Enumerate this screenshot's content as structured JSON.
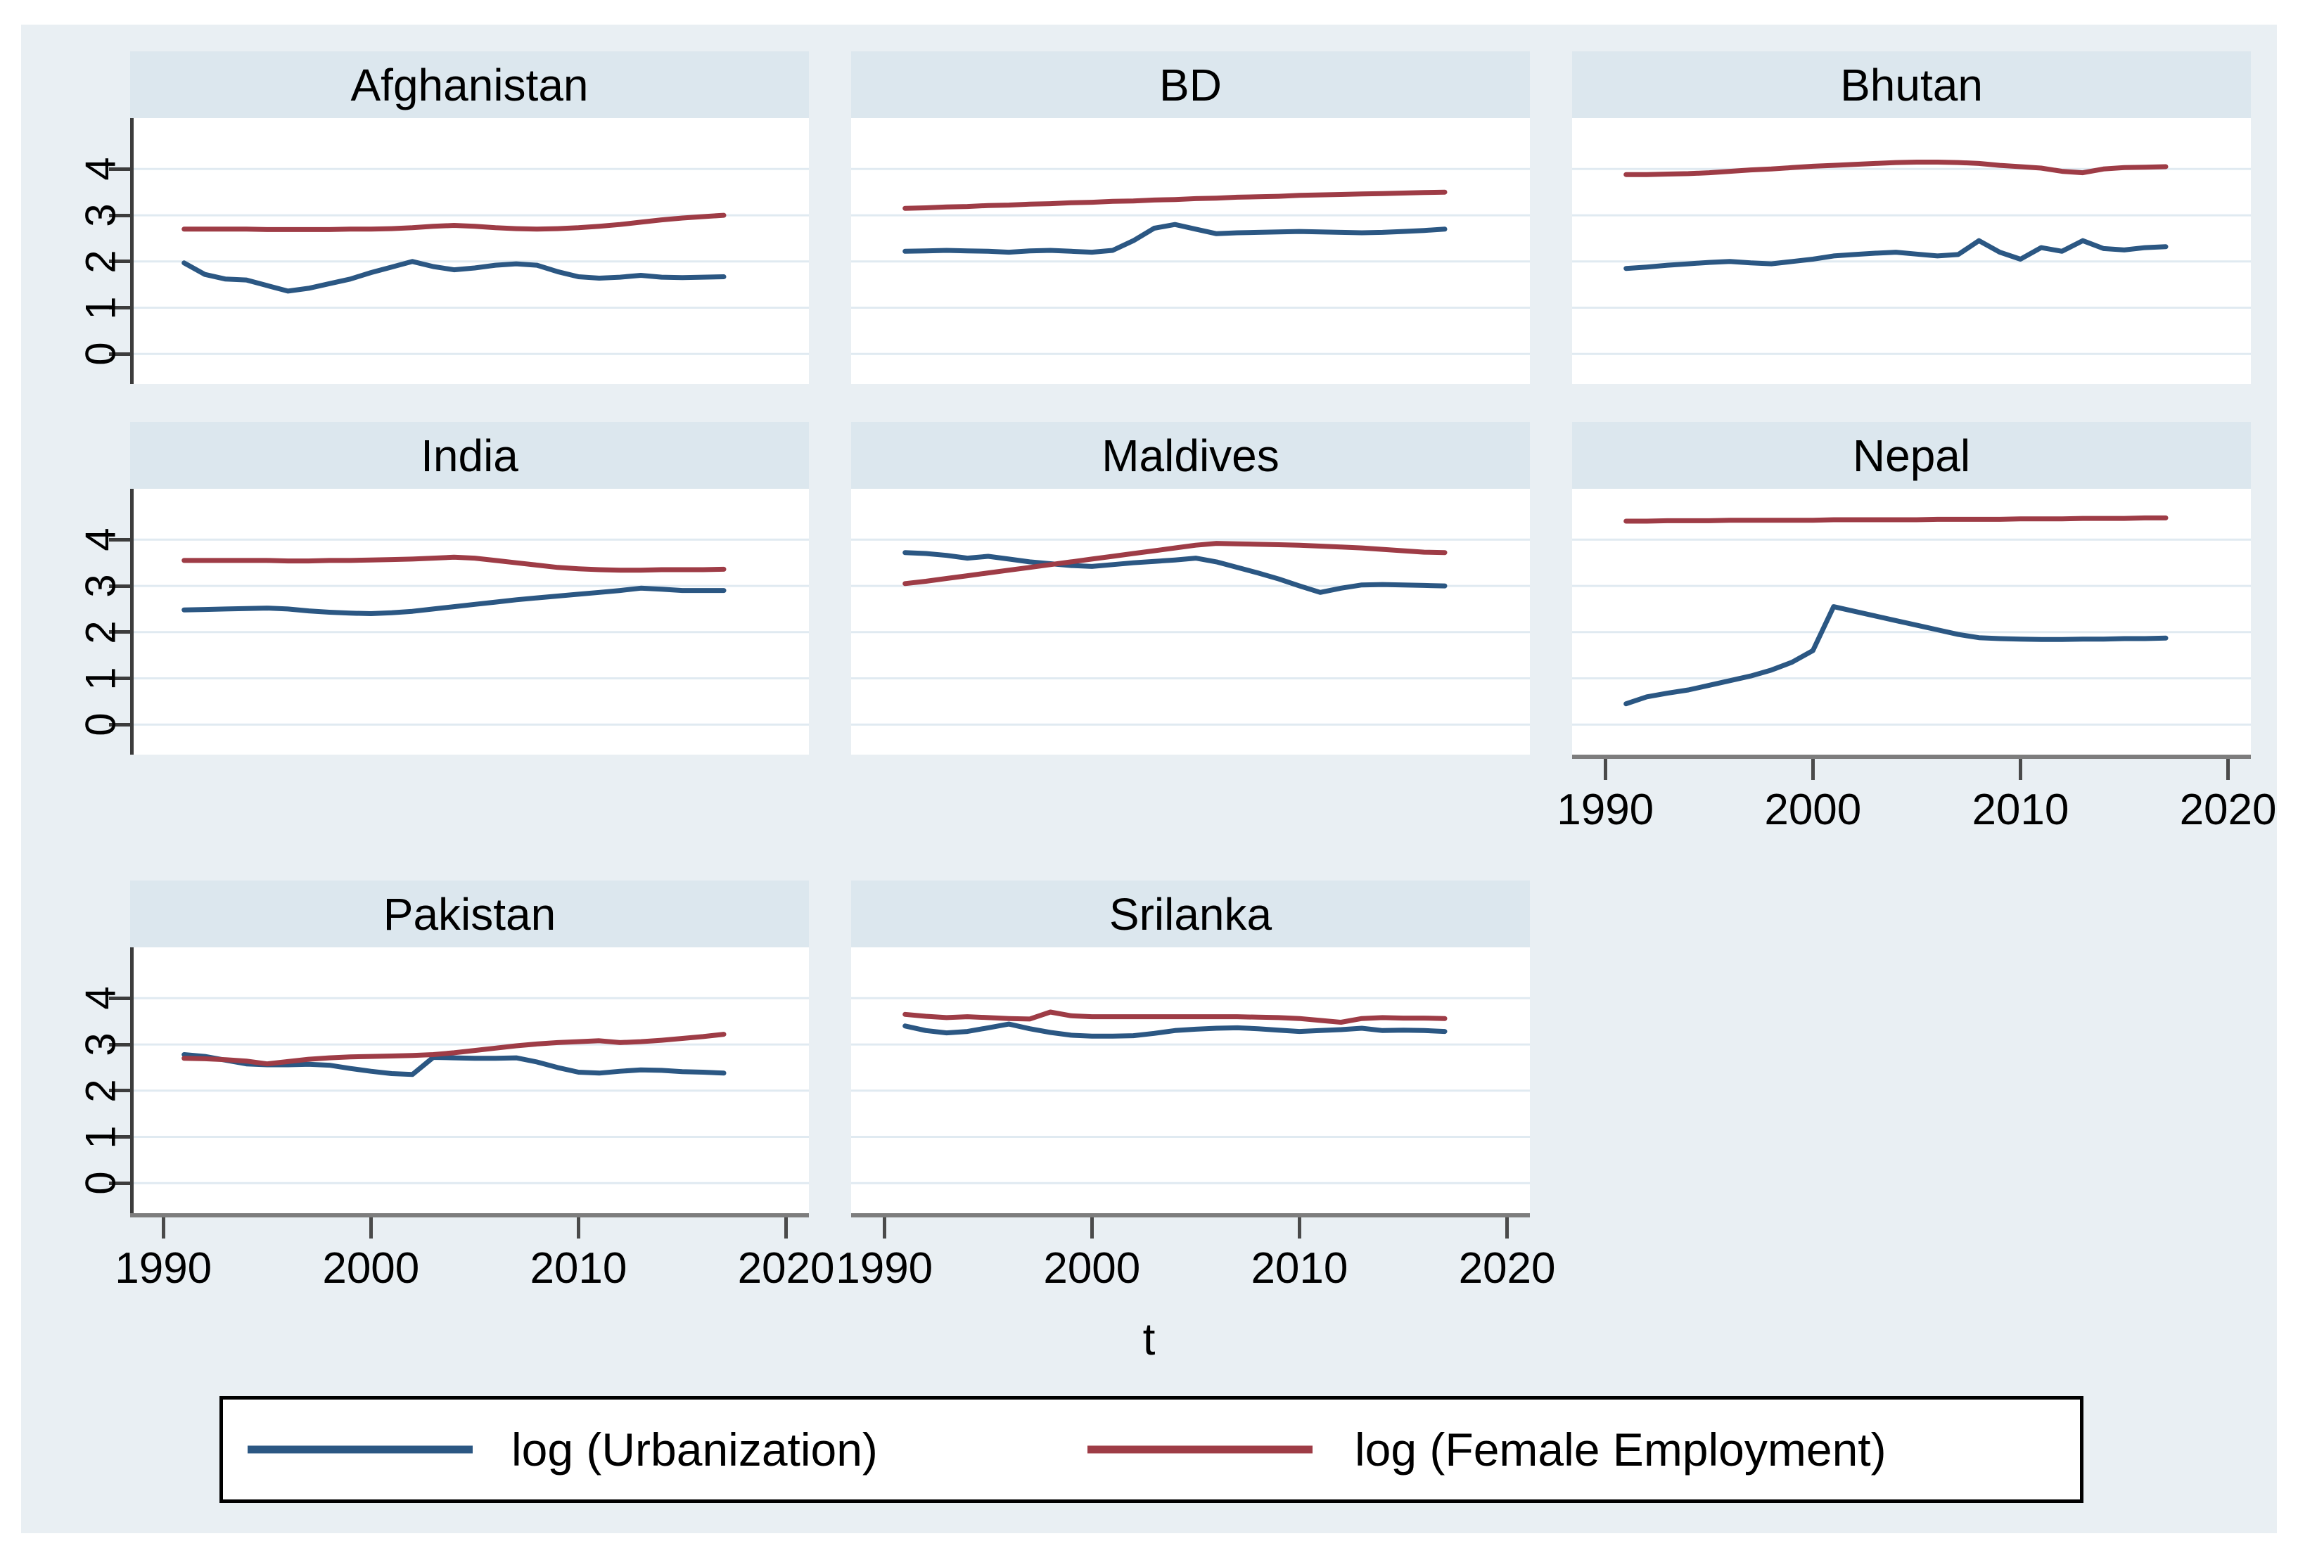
{
  "figure": {
    "background_color": "#e9eff3",
    "panel_band_color": "#dce7ee",
    "gridline_color": "#e0eaf1",
    "y_axis_color": "#3c3c3c",
    "x_axis_color": "#7d7d7d",
    "x_axis_title": "t",
    "series": [
      {
        "key": "urbanization",
        "label": "log (Urbanization)",
        "color": "#2b5783"
      },
      {
        "key": "female_employment",
        "label": "log (Female Employment)",
        "color": "#9e3c46"
      }
    ]
  },
  "chart_data": {
    "type": "line",
    "xlabel": "t",
    "ylabel": "",
    "legend_position": "bottom",
    "grid": true,
    "xlim": [
      1988.4,
      2021.1
    ],
    "ylim": [
      -0.65,
      5.1
    ],
    "x_ticks": [
      1990,
      2000,
      2010,
      2020
    ],
    "y_ticks": [
      0,
      1,
      2,
      3,
      4
    ],
    "x_years": [
      1991,
      1992,
      1993,
      1994,
      1995,
      1996,
      1997,
      1998,
      1999,
      2000,
      2001,
      2002,
      2003,
      2004,
      2005,
      2006,
      2007,
      2008,
      2009,
      2010,
      2011,
      2012,
      2013,
      2014,
      2015,
      2016,
      2017
    ],
    "panels": [
      {
        "title": "Afghanistan",
        "series": {
          "urbanization": [
            1.97,
            1.72,
            1.62,
            1.6,
            1.48,
            1.36,
            1.42,
            1.52,
            1.62,
            1.76,
            1.88,
            2.0,
            1.89,
            1.82,
            1.86,
            1.92,
            1.95,
            1.92,
            1.78,
            1.67,
            1.64,
            1.66,
            1.7,
            1.66,
            1.65,
            1.66,
            1.67
          ],
          "female_employment": [
            2.7,
            2.7,
            2.7,
            2.7,
            2.69,
            2.69,
            2.69,
            2.69,
            2.7,
            2.7,
            2.71,
            2.73,
            2.76,
            2.78,
            2.76,
            2.73,
            2.71,
            2.7,
            2.71,
            2.73,
            2.76,
            2.8,
            2.85,
            2.9,
            2.94,
            2.97,
            3.0
          ]
        }
      },
      {
        "title": "BD",
        "series": {
          "urbanization": [
            2.22,
            2.23,
            2.24,
            2.23,
            2.22,
            2.2,
            2.23,
            2.24,
            2.22,
            2.2,
            2.24,
            2.45,
            2.72,
            2.8,
            2.7,
            2.6,
            2.62,
            2.63,
            2.64,
            2.65,
            2.64,
            2.63,
            2.62,
            2.63,
            2.65,
            2.67,
            2.7
          ],
          "female_employment": [
            3.15,
            3.16,
            3.18,
            3.19,
            3.21,
            3.22,
            3.24,
            3.25,
            3.27,
            3.28,
            3.3,
            3.31,
            3.33,
            3.34,
            3.36,
            3.37,
            3.39,
            3.4,
            3.41,
            3.43,
            3.44,
            3.45,
            3.46,
            3.47,
            3.48,
            3.49,
            3.5
          ]
        }
      },
      {
        "title": "Bhutan",
        "series": {
          "urbanization": [
            1.85,
            1.88,
            1.92,
            1.95,
            1.98,
            2.0,
            1.97,
            1.95,
            2.0,
            2.05,
            2.12,
            2.15,
            2.18,
            2.2,
            2.16,
            2.12,
            2.15,
            2.45,
            2.2,
            2.05,
            2.3,
            2.22,
            2.45,
            2.28,
            2.25,
            2.3,
            2.32
          ],
          "female_employment": [
            3.88,
            3.88,
            3.89,
            3.9,
            3.92,
            3.95,
            3.98,
            4.0,
            4.03,
            4.06,
            4.08,
            4.1,
            4.12,
            4.14,
            4.15,
            4.15,
            4.14,
            4.12,
            4.08,
            4.05,
            4.02,
            3.95,
            3.92,
            4.0,
            4.03,
            4.04,
            4.05
          ]
        }
      },
      {
        "title": "India",
        "series": {
          "urbanization": [
            2.48,
            2.49,
            2.5,
            2.51,
            2.52,
            2.5,
            2.46,
            2.43,
            2.41,
            2.4,
            2.42,
            2.45,
            2.5,
            2.55,
            2.6,
            2.65,
            2.7,
            2.74,
            2.78,
            2.82,
            2.86,
            2.9,
            2.95,
            2.93,
            2.9,
            2.9,
            2.9
          ],
          "female_employment": [
            3.55,
            3.55,
            3.55,
            3.55,
            3.55,
            3.54,
            3.54,
            3.55,
            3.55,
            3.56,
            3.57,
            3.58,
            3.6,
            3.62,
            3.6,
            3.55,
            3.5,
            3.45,
            3.4,
            3.37,
            3.35,
            3.34,
            3.34,
            3.35,
            3.35,
            3.35,
            3.36
          ]
        }
      },
      {
        "title": "Maldives",
        "series": {
          "urbanization": [
            3.72,
            3.7,
            3.66,
            3.6,
            3.64,
            3.58,
            3.52,
            3.48,
            3.44,
            3.42,
            3.46,
            3.5,
            3.53,
            3.56,
            3.6,
            3.52,
            3.4,
            3.28,
            3.15,
            3.0,
            2.86,
            2.95,
            3.02,
            3.03,
            3.02,
            3.01,
            3.0
          ],
          "female_employment": [
            3.05,
            3.1,
            3.16,
            3.22,
            3.28,
            3.34,
            3.4,
            3.46,
            3.52,
            3.58,
            3.64,
            3.7,
            3.76,
            3.82,
            3.88,
            3.92,
            3.91,
            3.9,
            3.89,
            3.88,
            3.86,
            3.84,
            3.82,
            3.79,
            3.76,
            3.73,
            3.72
          ]
        }
      },
      {
        "title": "Nepal",
        "series": {
          "urbanization": [
            0.45,
            0.6,
            0.68,
            0.75,
            0.85,
            0.95,
            1.05,
            1.18,
            1.35,
            1.6,
            2.55,
            2.45,
            2.35,
            2.25,
            2.15,
            2.05,
            1.95,
            1.88,
            1.86,
            1.85,
            1.84,
            1.84,
            1.85,
            1.85,
            1.86,
            1.86,
            1.87
          ],
          "female_employment": [
            4.4,
            4.4,
            4.41,
            4.41,
            4.41,
            4.42,
            4.42,
            4.42,
            4.42,
            4.42,
            4.43,
            4.43,
            4.43,
            4.43,
            4.43,
            4.44,
            4.44,
            4.44,
            4.44,
            4.45,
            4.45,
            4.45,
            4.46,
            4.46,
            4.46,
            4.47,
            4.47
          ]
        }
      },
      {
        "title": "Pakistan",
        "series": {
          "urbanization": [
            2.78,
            2.74,
            2.66,
            2.58,
            2.56,
            2.56,
            2.57,
            2.55,
            2.48,
            2.42,
            2.37,
            2.35,
            2.72,
            2.71,
            2.7,
            2.7,
            2.71,
            2.62,
            2.5,
            2.4,
            2.38,
            2.42,
            2.45,
            2.44,
            2.41,
            2.4,
            2.38
          ],
          "female_employment": [
            2.7,
            2.69,
            2.67,
            2.64,
            2.58,
            2.63,
            2.68,
            2.71,
            2.73,
            2.74,
            2.75,
            2.76,
            2.78,
            2.82,
            2.87,
            2.92,
            2.97,
            3.01,
            3.04,
            3.06,
            3.08,
            3.04,
            3.06,
            3.09,
            3.13,
            3.17,
            3.22
          ]
        }
      },
      {
        "title": "Srilanka",
        "series": {
          "urbanization": [
            3.4,
            3.3,
            3.25,
            3.28,
            3.36,
            3.44,
            3.34,
            3.26,
            3.2,
            3.18,
            3.18,
            3.19,
            3.24,
            3.3,
            3.33,
            3.35,
            3.36,
            3.34,
            3.31,
            3.28,
            3.3,
            3.32,
            3.35,
            3.3,
            3.31,
            3.3,
            3.28
          ],
          "female_employment": [
            3.65,
            3.61,
            3.58,
            3.6,
            3.58,
            3.56,
            3.55,
            3.7,
            3.62,
            3.6,
            3.6,
            3.6,
            3.6,
            3.6,
            3.6,
            3.6,
            3.6,
            3.59,
            3.58,
            3.56,
            3.52,
            3.48,
            3.56,
            3.58,
            3.57,
            3.57,
            3.56
          ]
        }
      }
    ]
  }
}
